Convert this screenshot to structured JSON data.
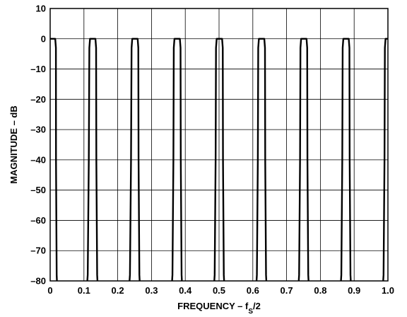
{
  "chart_data": {
    "type": "line",
    "title": "",
    "xlabel": "FREQUENCY – f",
    "xlabel_sub": "S",
    "xlabel_tail": "/2",
    "ylabel": "MAGNITUDE – dB",
    "xlim": [
      0,
      1.0
    ],
    "ylim": [
      -80,
      10
    ],
    "grid": true,
    "xticks": [
      0,
      0.1,
      0.2,
      0.3,
      0.4,
      0.5,
      0.6,
      0.7,
      0.8,
      0.9,
      1.0
    ],
    "xtick_labels": [
      "0",
      "0.1",
      "0.2",
      "0.3",
      "0.4",
      "0.5",
      "0.6",
      "0.7",
      "0.8",
      "0.9",
      "1.0"
    ],
    "yticks": [
      10,
      0,
      -10,
      -20,
      -30,
      -40,
      -50,
      -60,
      -70,
      -80
    ],
    "ytick_labels": [
      "10",
      "0",
      "–10",
      "–20",
      "–30",
      "–40",
      "–50",
      "–60",
      "–70",
      "–80"
    ],
    "series": [
      {
        "line_color": "#000000",
        "passbands": [
          {
            "center": 0.0,
            "rise_bottom": -0.02,
            "rise_top": -0.015,
            "fall_top": 0.015,
            "fall_bottom": 0.02
          },
          {
            "center": 0.125,
            "rise_bottom": 0.11,
            "rise_top": 0.118,
            "fall_top": 0.134,
            "fall_bottom": 0.14
          },
          {
            "center": 0.25,
            "rise_bottom": 0.235,
            "rise_top": 0.243,
            "fall_top": 0.259,
            "fall_bottom": 0.265
          },
          {
            "center": 0.375,
            "rise_bottom": 0.361,
            "rise_top": 0.368,
            "fall_top": 0.384,
            "fall_bottom": 0.39
          },
          {
            "center": 0.5,
            "rise_bottom": 0.486,
            "rise_top": 0.493,
            "fall_top": 0.509,
            "fall_bottom": 0.515
          },
          {
            "center": 0.625,
            "rise_bottom": 0.611,
            "rise_top": 0.618,
            "fall_top": 0.634,
            "fall_bottom": 0.64
          },
          {
            "center": 0.75,
            "rise_bottom": 0.736,
            "rise_top": 0.743,
            "fall_top": 0.759,
            "fall_bottom": 0.765
          },
          {
            "center": 0.875,
            "rise_bottom": 0.861,
            "rise_top": 0.868,
            "fall_top": 0.884,
            "fall_bottom": 0.89
          },
          {
            "center": 1.0,
            "rise_bottom": 0.986,
            "rise_top": 0.993,
            "fall_top": 1.015,
            "fall_bottom": 1.02
          }
        ]
      }
    ]
  }
}
